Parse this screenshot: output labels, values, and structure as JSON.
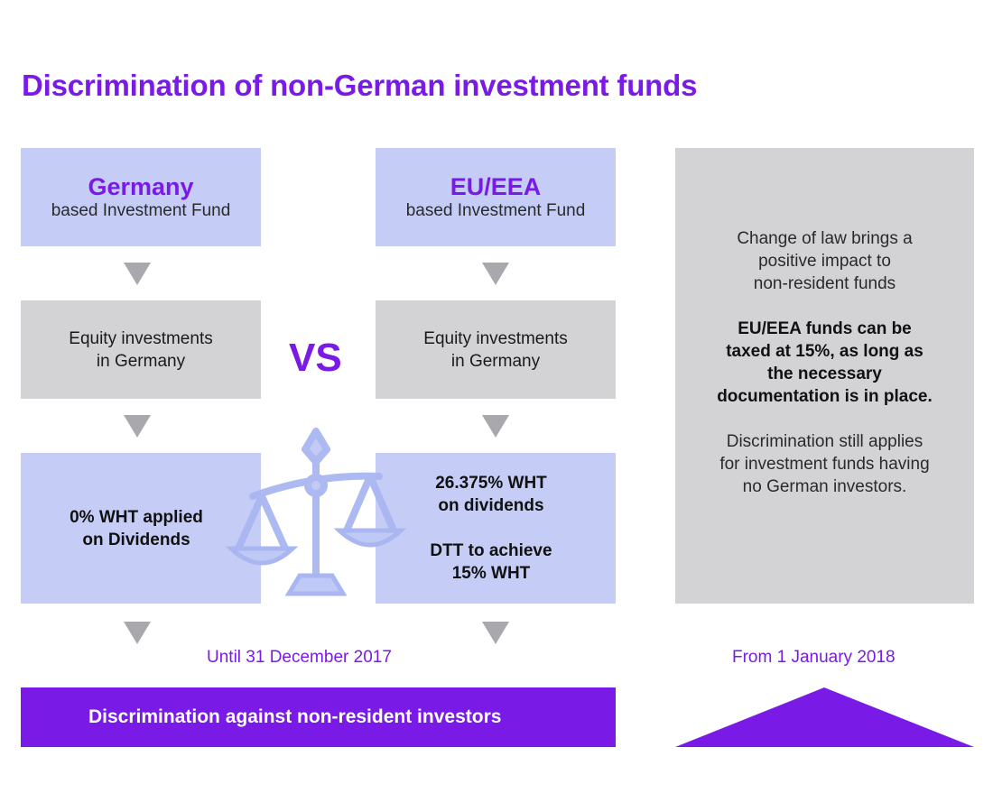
{
  "title": "Discrimination of non-German investment funds",
  "germany": {
    "heading": "Germany",
    "sub": "based Investment Fund",
    "equity_line1": "Equity investments",
    "equity_line2": "in Germany",
    "wht_line1": "0% WHT applied",
    "wht_line2": "on Dividends"
  },
  "eu": {
    "heading": "EU/EEA",
    "sub": "based Investment Fund",
    "equity_line1": "Equity investments",
    "equity_line2": "in Germany",
    "wht_line1": "26.375% WHT",
    "wht_line2": "on dividends",
    "dtt_line1": "DTT to achieve",
    "dtt_line2": "15% WHT"
  },
  "vs": "VS",
  "side": {
    "p1_line1": "Change of law brings a",
    "p1_line2": "positive impact to",
    "p1_line3": "non-resident funds",
    "p2_line1": "EU/EEA funds can be",
    "p2_line2": "taxed at 15%, as long as",
    "p2_line3": "the necessary",
    "p2_line4": "documentation is in place.",
    "p3_line1": "Discrimination still applies",
    "p3_line2": "for investment funds having",
    "p3_line3": "no German investors."
  },
  "period_until": "Until 31 December 2017",
  "period_from": "From 1 January 2018",
  "bar_label": "Discrimination against non-resident investors",
  "colors": {
    "accent": "#7a1ae6",
    "blue_box": "#c5cdf7",
    "grey_box": "#d3d3d6",
    "arrow": "#a9a9ad",
    "scales": "#a9b6f1"
  },
  "icons": [
    "scales-of-justice-icon"
  ]
}
